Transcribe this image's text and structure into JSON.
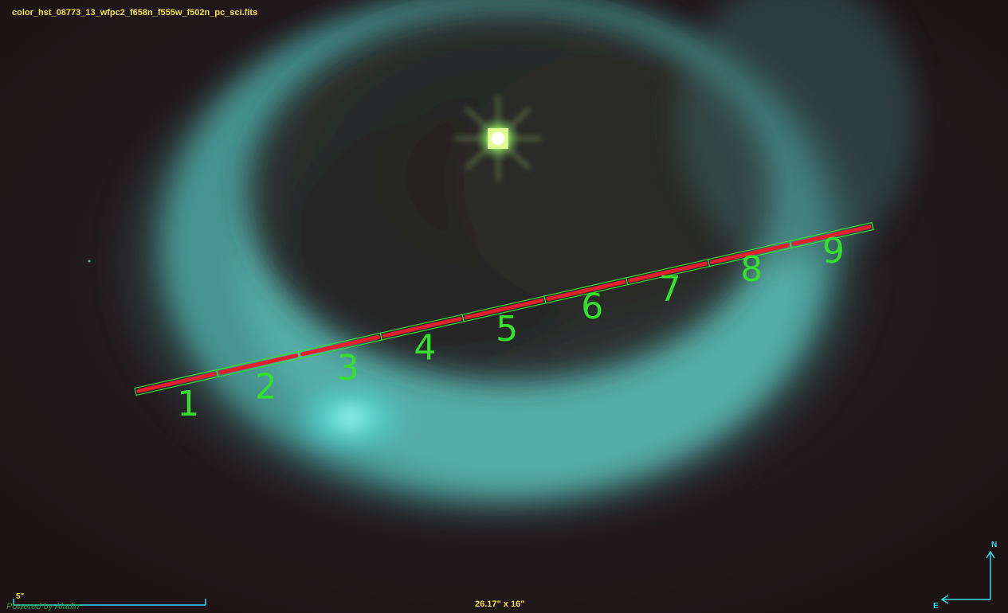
{
  "viewer": {
    "file_name": "color_hst_08773_13_wfpc2_f658n_f555w_f502n_pc_sci.fits",
    "scale_label": "5\"",
    "field_of_view": "26.17\" x 16\"",
    "credit": "Powered by Aladin",
    "compass": {
      "north": "N",
      "east": "E"
    }
  },
  "slit": {
    "segment_labels": [
      "1",
      "2",
      "3",
      "4",
      "5",
      "6",
      "7",
      "8",
      "9"
    ],
    "fill_color": "#e21f2c",
    "outline_color": "#35e02c",
    "label_color": "#35e02c"
  },
  "colors": {
    "overlay_text": "#f2e34a",
    "compass": "#36d9e9",
    "credit": "#2f9b3a",
    "nebula": "#5fbcb6",
    "background": "#1f1517"
  }
}
